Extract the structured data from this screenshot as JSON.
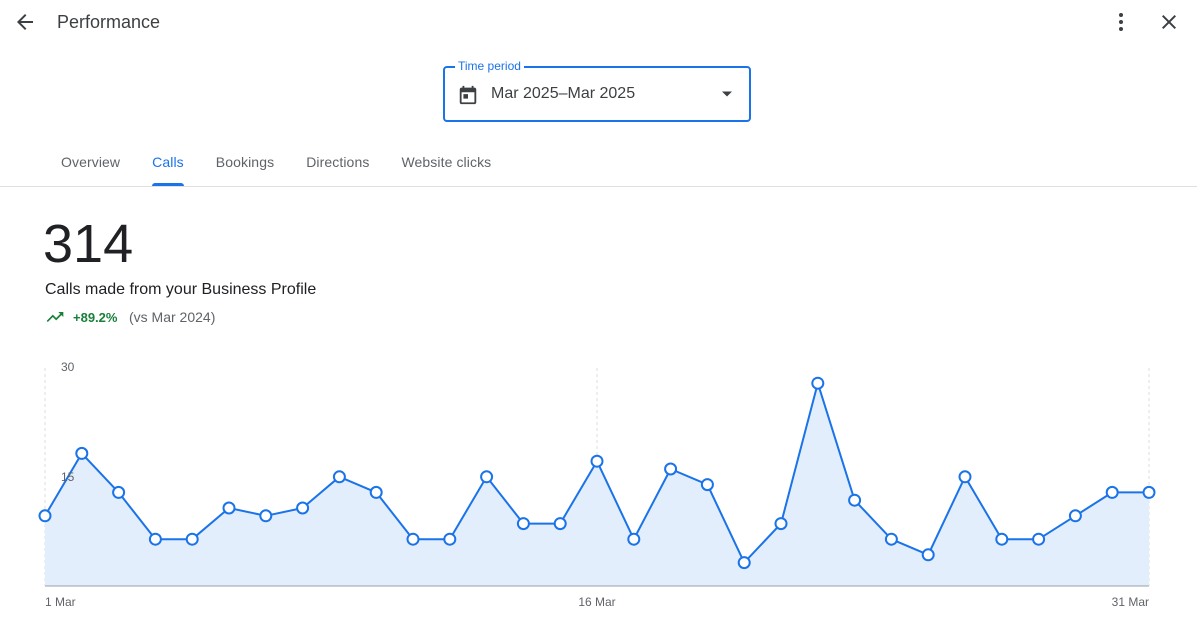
{
  "header": {
    "title": "Performance",
    "back_icon": "arrow-back-icon",
    "more_icon": "more-vert-icon",
    "close_icon": "close-icon"
  },
  "time_period": {
    "label": "Time period",
    "value": "Mar 2025–Mar 2025",
    "icon": "calendar-icon"
  },
  "tabs": [
    {
      "label": "Overview",
      "active": false
    },
    {
      "label": "Calls",
      "active": true
    },
    {
      "label": "Bookings",
      "active": false
    },
    {
      "label": "Directions",
      "active": false
    },
    {
      "label": "Website clicks",
      "active": false
    }
  ],
  "summary": {
    "total": "314",
    "label": "Calls made from your Business Profile",
    "change": "+89.2%",
    "compare": "(vs Mar 2024)"
  },
  "colors": {
    "accent": "#1a73e8",
    "positive": "#188038",
    "series_fill": "#e3eefc"
  },
  "chart_data": {
    "type": "area",
    "x_label_ticks": [
      "1 Mar",
      "16 Mar",
      "31 Mar"
    ],
    "y_tick_labels": [
      "30",
      "15"
    ],
    "ylim": [
      0,
      30
    ],
    "x": [
      "1 Mar",
      "2 Mar",
      "3 Mar",
      "4 Mar",
      "5 Mar",
      "6 Mar",
      "7 Mar",
      "8 Mar",
      "9 Mar",
      "10 Mar",
      "11 Mar",
      "12 Mar",
      "13 Mar",
      "14 Mar",
      "15 Mar",
      "16 Mar",
      "17 Mar",
      "18 Mar",
      "19 Mar",
      "20 Mar",
      "21 Mar",
      "22 Mar",
      "23 Mar",
      "24 Mar",
      "25 Mar",
      "26 Mar",
      "27 Mar",
      "28 Mar",
      "29 Mar",
      "30 Mar",
      "31 Mar"
    ],
    "series": [
      {
        "values": [
          9,
          17,
          12,
          6,
          6,
          10,
          9,
          10,
          14,
          12,
          6,
          6,
          14,
          8,
          8,
          16,
          6,
          15,
          13,
          3,
          8,
          26,
          11,
          6,
          4,
          14,
          6,
          6,
          9,
          12,
          12
        ]
      }
    ],
    "grid": "vertical dashed at 1, 16, 31 Mar",
    "legend": "none"
  }
}
